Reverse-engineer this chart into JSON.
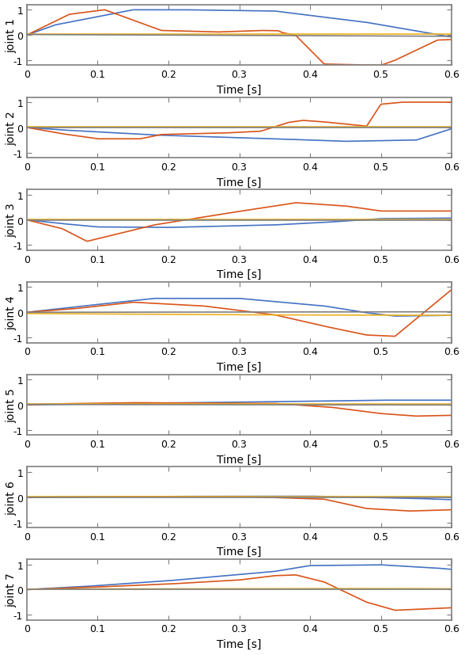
{
  "xlim": [
    0,
    0.6
  ],
  "ylim": [
    -1.2,
    1.2
  ],
  "yticks": [
    -1,
    0,
    1
  ],
  "xticks": [
    0,
    0.1,
    0.2,
    0.3,
    0.4,
    0.5,
    0.6
  ],
  "xlabel": "Time [s]",
  "ylabel_template": "joint {n}",
  "n_joints": 7,
  "colors": [
    "#4472C4",
    "#D95319",
    "#EDB120",
    "#7F7F7F"
  ],
  "background": "#FFFFFF",
  "spine_color": "#7F7F7F",
  "figsize": [
    5.88,
    8.28
  ],
  "dpi": 100,
  "joint1": {
    "blue": {
      "t": [
        0,
        0.04,
        0.15,
        0.22,
        0.35,
        0.48,
        0.6
      ],
      "v": [
        0,
        0.4,
        1.0,
        1.0,
        0.95,
        0.5,
        -0.08
      ]
    },
    "orange": {
      "t": [
        0,
        0.06,
        0.11,
        0.19,
        0.27,
        0.33,
        0.355,
        0.36,
        0.38,
        0.42,
        0.5,
        0.52,
        0.58,
        0.6
      ],
      "v": [
        0,
        0.82,
        1.0,
        0.18,
        0.12,
        0.18,
        0.17,
        0.1,
        -0.02,
        -1.15,
        -1.2,
        -1.0,
        -0.2,
        -0.18
      ]
    },
    "yellow": {
      "t": [
        0,
        0.6
      ],
      "v": [
        0.03,
        0.03
      ]
    },
    "gray": {
      "t": [
        0,
        0.6
      ],
      "v": [
        0.02,
        -0.05
      ]
    }
  },
  "joint2": {
    "blue": {
      "t": [
        0,
        0.05,
        0.18,
        0.35,
        0.45,
        0.55,
        0.6
      ],
      "v": [
        0,
        -0.1,
        -0.3,
        -0.45,
        -0.55,
        -0.5,
        -0.05
      ]
    },
    "orange": {
      "t": [
        0,
        0.05,
        0.1,
        0.16,
        0.19,
        0.28,
        0.33,
        0.37,
        0.39,
        0.42,
        0.48,
        0.5,
        0.53,
        0.6
      ],
      "v": [
        0,
        -0.25,
        -0.45,
        -0.45,
        -0.28,
        -0.22,
        -0.15,
        0.2,
        0.28,
        0.22,
        0.05,
        0.92,
        1.0,
        1.0
      ]
    },
    "yellow": {
      "t": [
        0,
        0.6
      ],
      "v": [
        0.02,
        0.02
      ]
    },
    "gray": {
      "t": [
        0,
        0.6
      ],
      "v": [
        0.0,
        0.0
      ]
    }
  },
  "joint3": {
    "blue": {
      "t": [
        0,
        0.05,
        0.1,
        0.2,
        0.35,
        0.42,
        0.5,
        0.6
      ],
      "v": [
        0,
        -0.15,
        -0.28,
        -0.3,
        -0.2,
        -0.1,
        0.05,
        0.07
      ]
    },
    "orange": {
      "t": [
        0,
        0.05,
        0.085,
        0.18,
        0.28,
        0.38,
        0.45,
        0.5,
        0.6
      ],
      "v": [
        0,
        -0.35,
        -0.85,
        -0.2,
        0.25,
        0.68,
        0.55,
        0.35,
        0.35
      ]
    },
    "yellow": {
      "t": [
        0,
        0.6
      ],
      "v": [
        0.02,
        0.02
      ]
    },
    "gray": {
      "t": [
        0,
        0.6
      ],
      "v": [
        0.0,
        0.0
      ]
    }
  },
  "joint4": {
    "blue": {
      "t": [
        0,
        0.08,
        0.18,
        0.3,
        0.42,
        0.48,
        0.52,
        0.6
      ],
      "v": [
        0,
        0.25,
        0.55,
        0.55,
        0.25,
        -0.02,
        -0.15,
        -0.12
      ]
    },
    "orange": {
      "t": [
        0,
        0.07,
        0.15,
        0.25,
        0.35,
        0.42,
        0.48,
        0.52,
        0.6
      ],
      "v": [
        0,
        0.15,
        0.4,
        0.25,
        -0.1,
        -0.55,
        -0.9,
        -0.95,
        0.9
      ]
    },
    "yellow": {
      "t": [
        0,
        0.3,
        0.6
      ],
      "v": [
        -0.05,
        -0.1,
        -0.12
      ]
    },
    "gray": {
      "t": [
        0,
        0.6
      ],
      "v": [
        0.0,
        0.02
      ]
    }
  },
  "joint5": {
    "blue": {
      "t": [
        0,
        0.15,
        0.35,
        0.5,
        0.6
      ],
      "v": [
        0,
        0.05,
        0.12,
        0.18,
        0.18
      ]
    },
    "orange": {
      "t": [
        0,
        0.05,
        0.15,
        0.35,
        0.43,
        0.5,
        0.55,
        0.6
      ],
      "v": [
        0,
        0.04,
        0.08,
        0.05,
        -0.1,
        -0.35,
        -0.45,
        -0.42
      ]
    },
    "yellow": {
      "t": [
        0,
        0.6
      ],
      "v": [
        0.02,
        0.02
      ]
    },
    "gray": {
      "t": [
        0,
        0.6
      ],
      "v": [
        0.01,
        -0.01
      ]
    }
  },
  "joint6": {
    "blue": {
      "t": [
        0,
        0.2,
        0.4,
        0.55,
        0.6
      ],
      "v": [
        0,
        0.03,
        0.04,
        -0.05,
        -0.1
      ]
    },
    "orange": {
      "t": [
        0,
        0.1,
        0.3,
        0.42,
        0.48,
        0.54,
        0.6
      ],
      "v": [
        0,
        0.02,
        0.03,
        -0.08,
        -0.45,
        -0.55,
        -0.5
      ]
    },
    "yellow": {
      "t": [
        0,
        0.6
      ],
      "v": [
        0.01,
        0.01
      ]
    },
    "gray": {
      "t": [
        0,
        0.6
      ],
      "v": [
        0.0,
        0.0
      ]
    }
  },
  "joint7": {
    "blue": {
      "t": [
        0,
        0.08,
        0.2,
        0.35,
        0.4,
        0.5,
        0.58,
        0.6
      ],
      "v": [
        0,
        0.12,
        0.35,
        0.72,
        0.95,
        0.98,
        0.85,
        0.8
      ]
    },
    "orange": {
      "t": [
        0,
        0.08,
        0.2,
        0.3,
        0.35,
        0.38,
        0.42,
        0.48,
        0.52,
        0.6
      ],
      "v": [
        0,
        0.08,
        0.22,
        0.38,
        0.55,
        0.58,
        0.3,
        -0.5,
        -0.82,
        -0.72
      ]
    },
    "yellow": {
      "t": [
        0,
        0.4,
        0.55,
        0.6
      ],
      "v": [
        0.02,
        0.04,
        0.04,
        0.03
      ]
    },
    "gray": {
      "t": [
        0,
        0.6
      ],
      "v": [
        0.0,
        0.0
      ]
    }
  }
}
